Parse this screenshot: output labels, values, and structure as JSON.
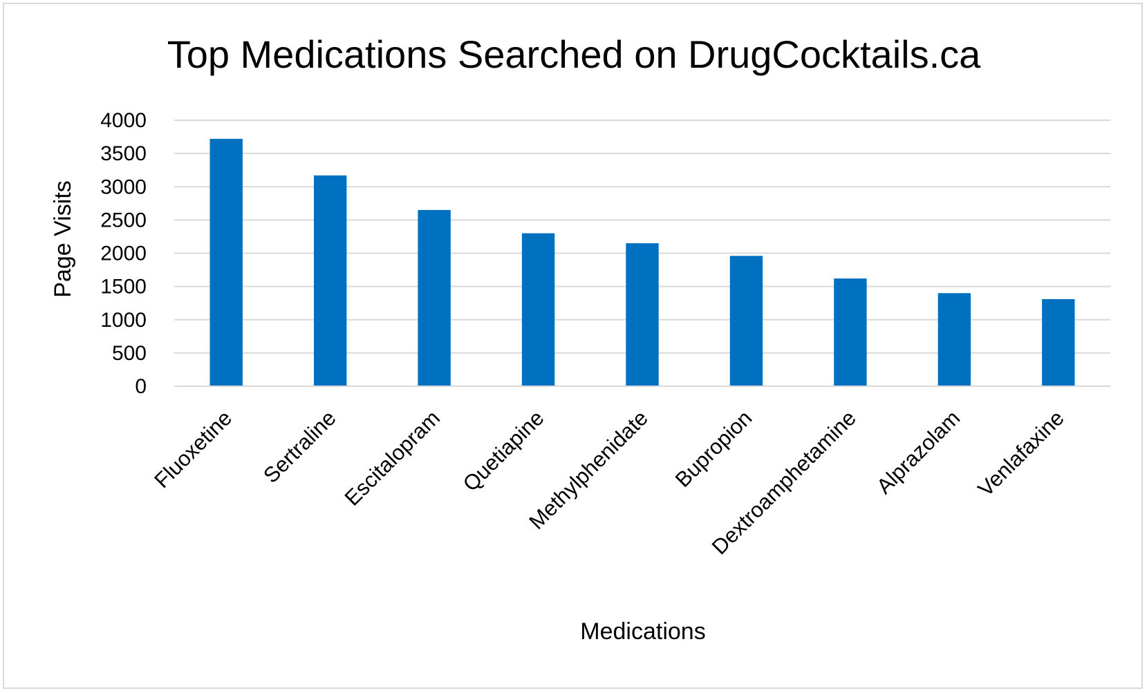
{
  "chart_data": {
    "type": "bar",
    "title": "Top Medications Searched on DrugCocktails.ca",
    "xlabel": "Medications",
    "ylabel": "Page Visits",
    "categories": [
      "Fluoxetine",
      "Sertraline",
      "Escitalopram",
      "Quetiapine",
      "Methylphenidate",
      "Bupropion",
      "Dextroamphetamine",
      "Alprazolam",
      "Venlafaxine"
    ],
    "values": [
      3720,
      3170,
      2650,
      2300,
      2150,
      1960,
      1620,
      1400,
      1310
    ],
    "ylim": [
      0,
      4000
    ],
    "yticks": [
      0,
      500,
      1000,
      1500,
      2000,
      2500,
      3000,
      3500,
      4000
    ],
    "grid": true,
    "legend": "none",
    "bar_color": "#0070c0",
    "grid_color": "#d9d9d9"
  }
}
